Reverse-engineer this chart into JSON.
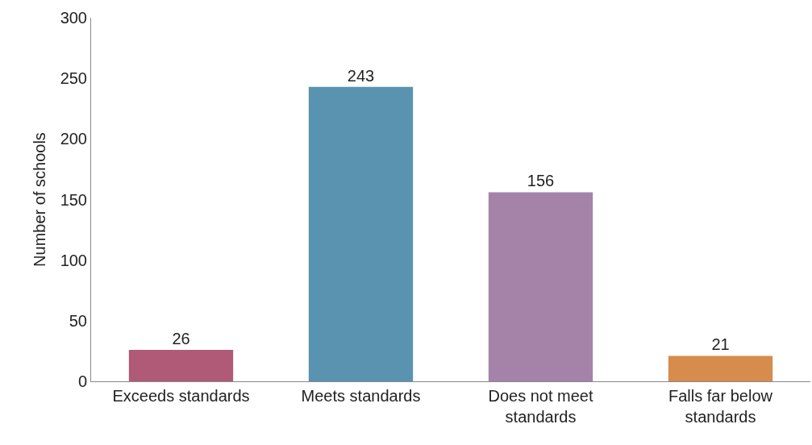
{
  "chart_data": {
    "type": "bar",
    "ylabel": "Number of schools",
    "categories": [
      "Exceeds standards",
      "Meets standards",
      "Does not meet standards",
      "Falls far below standards"
    ],
    "values": [
      26,
      243,
      156,
      21
    ],
    "colors": [
      "#b05a78",
      "#5a93b0",
      "#a583a9",
      "#d68c4d"
    ],
    "ylim": [
      0,
      300
    ],
    "yticks": [
      0,
      50,
      100,
      150,
      200,
      250,
      300
    ],
    "data_labels": true
  }
}
